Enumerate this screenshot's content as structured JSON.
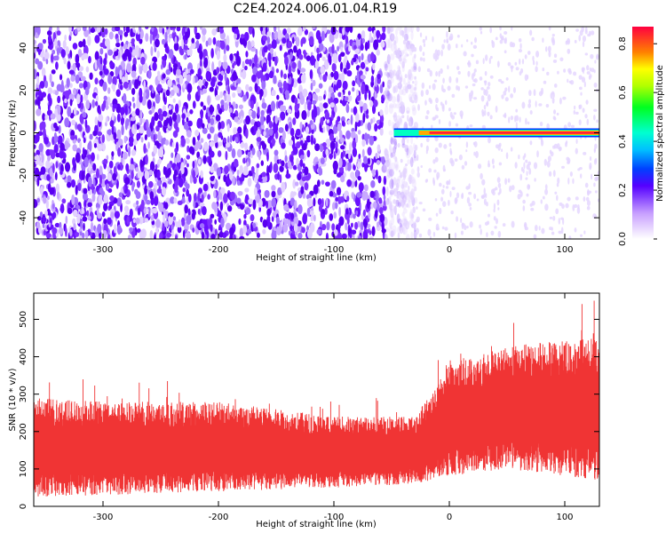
{
  "title": "C2E4.2024.006.01.04.R19",
  "chart_data": [
    {
      "type": "heatmap",
      "xlabel": "Height of straight line (km)",
      "ylabel": "Frequency (Hz)",
      "xlim": [
        -360,
        130
      ],
      "ylim": [
        -50,
        50
      ],
      "x_ticks": [
        -300,
        -200,
        -100,
        0,
        100
      ],
      "y_ticks": [
        -40,
        -20,
        0,
        20,
        40
      ],
      "colorbar": {
        "label": "Normalized spectral amplitude",
        "ticks": [
          "0.0",
          "0.2",
          "0.4",
          "0.6",
          "0.8"
        ],
        "range": [
          0,
          0.87
        ]
      },
      "regions": [
        {
          "x_range": [
            -360,
            -48
          ],
          "freq_range": [
            -50,
            50
          ],
          "amplitude": "high-noise"
        },
        {
          "x_range": [
            -48,
            130
          ],
          "freq_range": [
            -1,
            1
          ],
          "amplitude": 0.85
        }
      ]
    },
    {
      "type": "area",
      "xlabel": "Height of straight line (km)",
      "ylabel": "SNR (10 * v/v)",
      "xlim": [
        -360,
        130
      ],
      "ylim": [
        0,
        570
      ],
      "x_ticks": [
        -300,
        -200,
        -100,
        0,
        100
      ],
      "y_ticks": [
        0,
        100,
        200,
        300,
        400,
        500
      ],
      "envelope": {
        "x": [
          -360,
          -300,
          -200,
          -100,
          -30,
          0,
          50,
          130
        ],
        "lower": [
          25,
          30,
          40,
          50,
          60,
          80,
          100,
          70
        ],
        "upper": [
          290,
          280,
          280,
          240,
          240,
          380,
          430,
          450
        ]
      },
      "color": "#f03434"
    }
  ]
}
